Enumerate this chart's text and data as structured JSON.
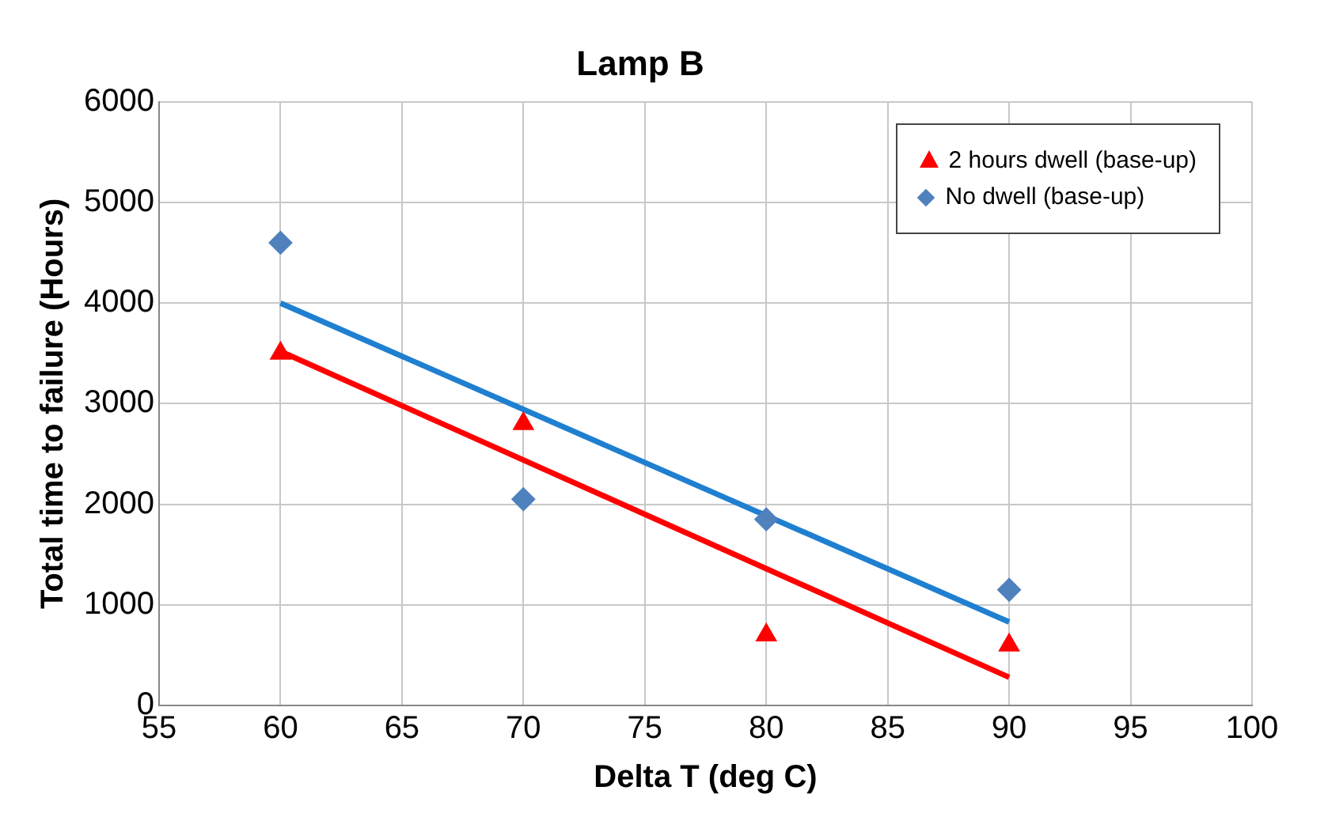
{
  "chart_data": {
    "type": "scatter",
    "title": "Lamp B",
    "xlabel": "Delta T (deg C)",
    "ylabel": "Total time to failure (Hours)",
    "xlim": [
      55,
      100
    ],
    "xticks": [
      55,
      60,
      65,
      70,
      75,
      80,
      85,
      90,
      95,
      100
    ],
    "ylim": [
      0,
      6000
    ],
    "yticks": [
      0,
      1000,
      2000,
      3000,
      4000,
      5000,
      6000
    ],
    "grid": true,
    "legend": "top right",
    "series": [
      {
        "name": "2 hours dwell (base-up)",
        "color": "#ff0000",
        "marker": "triangle",
        "x": [
          60,
          70,
          80,
          90
        ],
        "values": [
          3500,
          2800,
          700,
          600
        ]
      },
      {
        "name": "No dwell (base-up)",
        "color": "#4f81bd",
        "marker": "diamond",
        "x": [
          60,
          70,
          80,
          90
        ],
        "values": [
          4600,
          2050,
          1850,
          1150
        ]
      },
      {
        "type": "line",
        "color": "#ff0000",
        "marker": "none",
        "x": [
          60,
          90
        ],
        "values": [
          3520,
          280
        ]
      },
      {
        "type": "line",
        "color": "#1f7fd0",
        "marker": "none",
        "x": [
          60,
          90
        ],
        "values": [
          4000,
          830
        ]
      }
    ]
  }
}
